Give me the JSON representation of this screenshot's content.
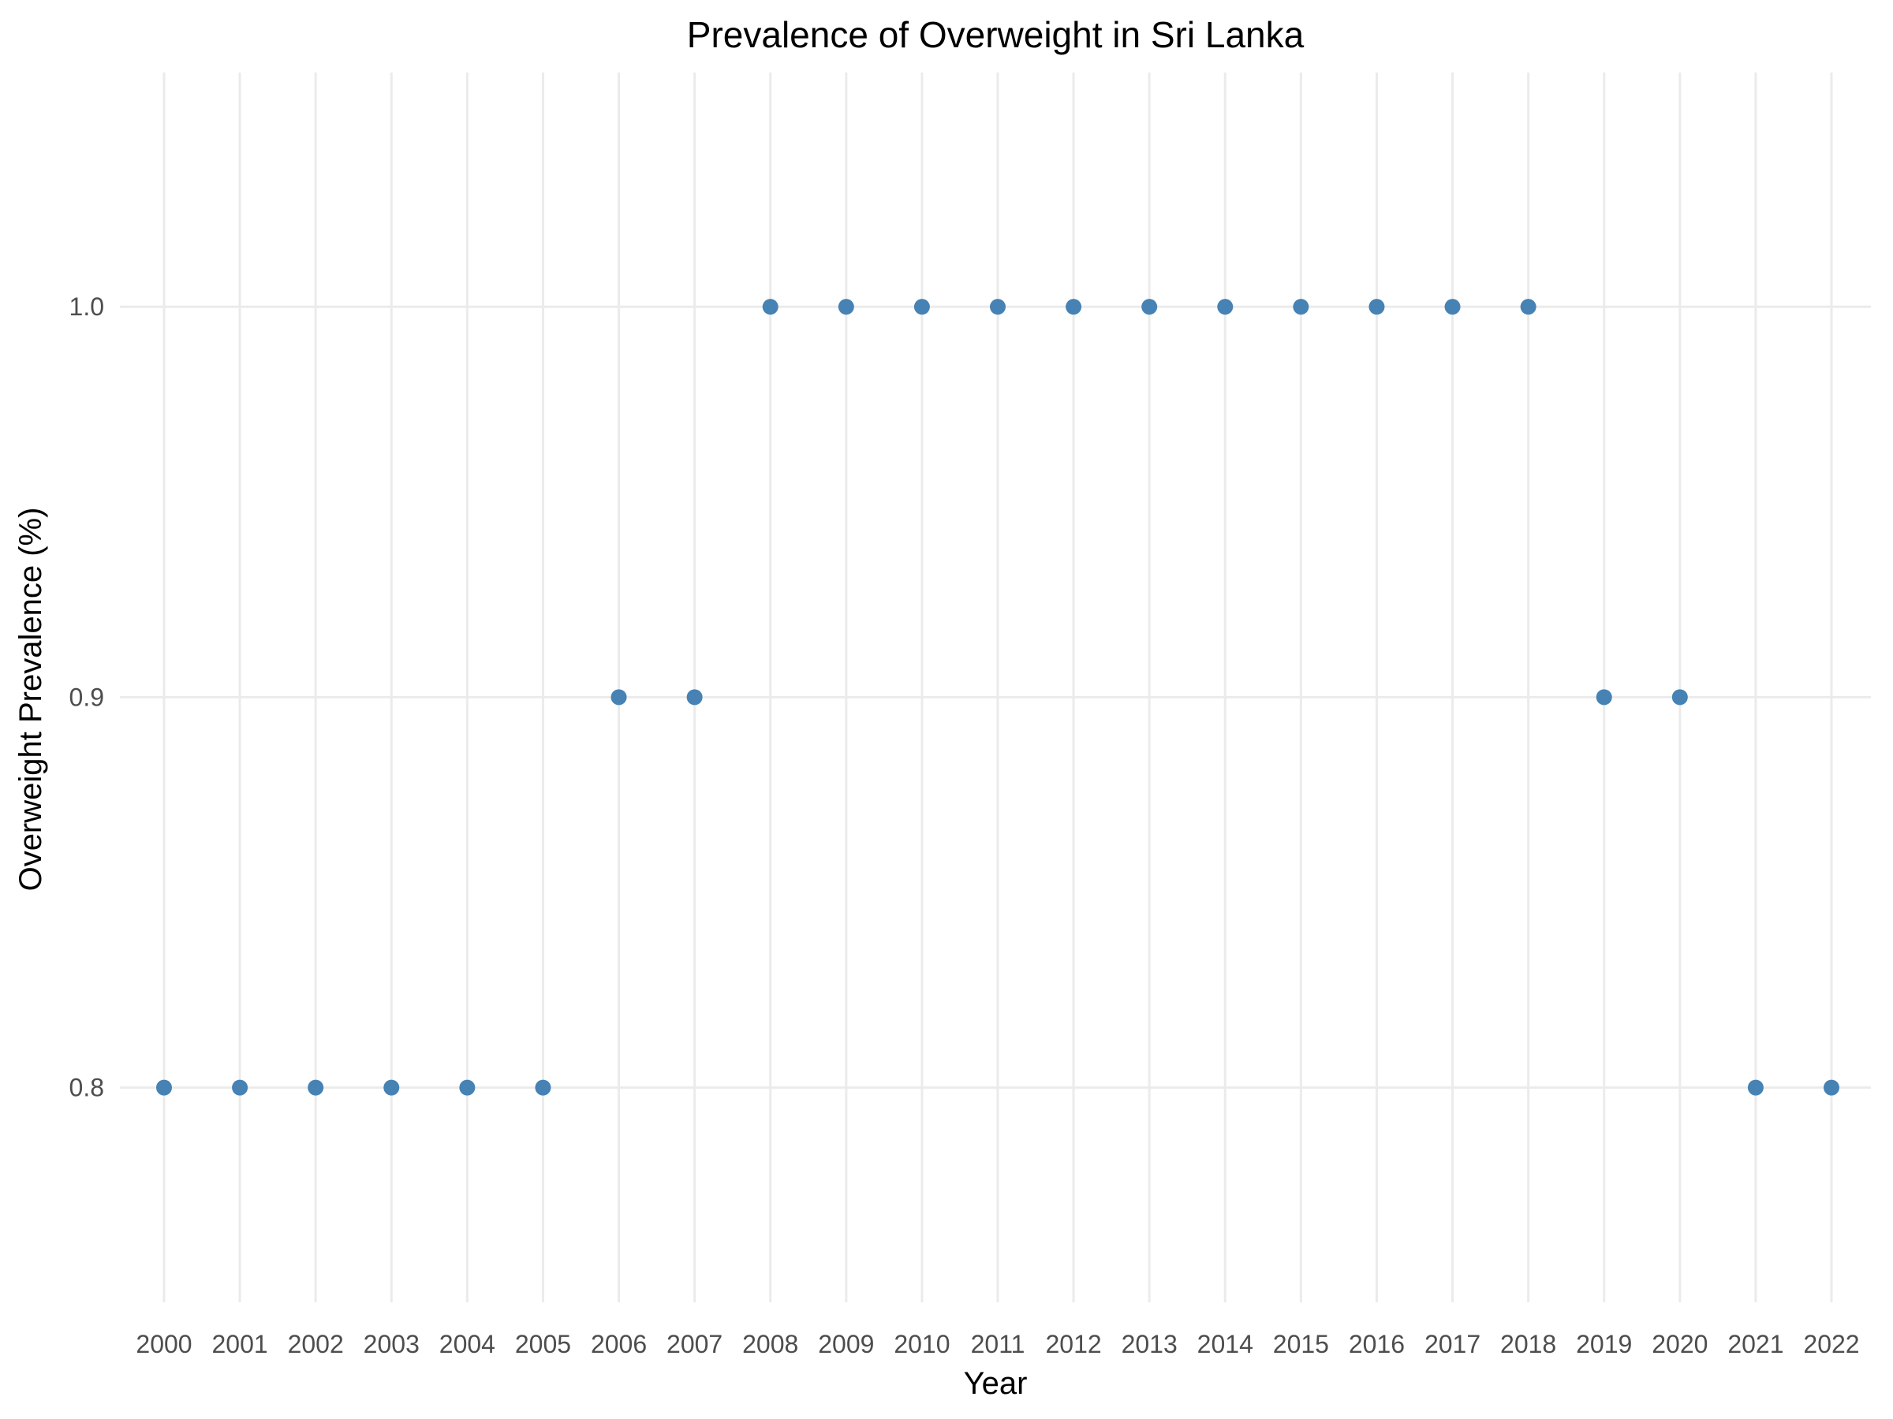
{
  "chart_data": {
    "type": "scatter",
    "title": "Prevalence of Overweight in Sri Lanka",
    "xlabel": "Year",
    "ylabel": "Overweight Prevalence (%)",
    "x": [
      2000,
      2001,
      2002,
      2003,
      2004,
      2005,
      2006,
      2007,
      2008,
      2009,
      2010,
      2011,
      2012,
      2013,
      2014,
      2015,
      2016,
      2017,
      2018,
      2019,
      2020,
      2021,
      2022
    ],
    "y": [
      0.8,
      0.8,
      0.8,
      0.8,
      0.8,
      0.8,
      0.9,
      0.9,
      1.0,
      1.0,
      1.0,
      1.0,
      1.0,
      1.0,
      1.0,
      1.0,
      1.0,
      1.0,
      1.0,
      0.9,
      0.9,
      0.8,
      0.8
    ],
    "xticks": [
      "2000",
      "2001",
      "2002",
      "2003",
      "2004",
      "2005",
      "2006",
      "2007",
      "2008",
      "2009",
      "2010",
      "2011",
      "2012",
      "2013",
      "2014",
      "2015",
      "2016",
      "2017",
      "2018",
      "2019",
      "2020",
      "2021",
      "2022"
    ],
    "yticks": [
      "0.8",
      "0.9",
      "1.0"
    ],
    "ylim": [
      0.745,
      1.06
    ],
    "grid": true,
    "legend": "none",
    "point_color": "#4682b4",
    "grid_color": "#ebebeb"
  }
}
